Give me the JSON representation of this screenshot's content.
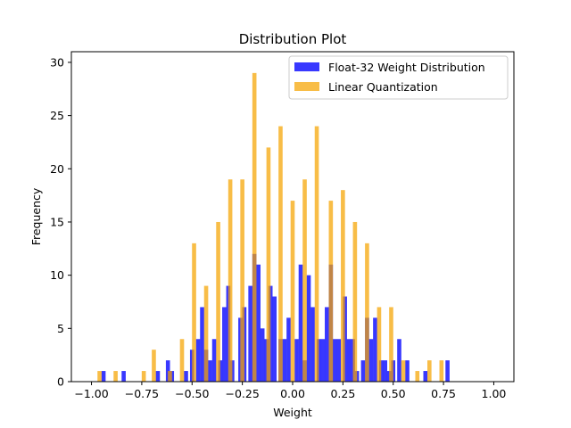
{
  "chart_data": {
    "type": "bar",
    "title": "Distribution Plot",
    "xlabel": "Weight",
    "ylabel": "Frequency",
    "xlim": [
      -1.1,
      1.1
    ],
    "ylim": [
      0,
      31
    ],
    "xticks": [
      -1.0,
      -0.75,
      -0.5,
      -0.25,
      0.0,
      0.25,
      0.5,
      0.75,
      1.0
    ],
    "xtick_labels": [
      "−1.00",
      "−0.75",
      "−0.50",
      "−0.25",
      "0.00",
      "0.25",
      "0.50",
      "0.75",
      "1.00"
    ],
    "yticks": [
      0,
      5,
      10,
      15,
      20,
      25,
      30
    ],
    "ytick_labels": [
      "0",
      "5",
      "10",
      "15",
      "20",
      "25",
      "30"
    ],
    "grid": false,
    "legend_position": "top-right",
    "series": [
      {
        "name": "Float-32 Weight Distribution",
        "color": "#0000ff",
        "opacity": 0.78,
        "bins": [
          [
            -0.94,
            1
          ],
          [
            -0.84,
            1
          ],
          [
            -0.67,
            1
          ],
          [
            -0.62,
            2
          ],
          [
            -0.6,
            1
          ],
          [
            -0.53,
            1
          ],
          [
            -0.5,
            3
          ],
          [
            -0.47,
            4
          ],
          [
            -0.45,
            7
          ],
          [
            -0.43,
            3
          ],
          [
            -0.41,
            2
          ],
          [
            -0.39,
            4
          ],
          [
            -0.36,
            2
          ],
          [
            -0.34,
            7
          ],
          [
            -0.32,
            9
          ],
          [
            -0.3,
            2
          ],
          [
            -0.26,
            6
          ],
          [
            -0.24,
            7
          ],
          [
            -0.21,
            9
          ],
          [
            -0.19,
            12
          ],
          [
            -0.17,
            11
          ],
          [
            -0.15,
            5
          ],
          [
            -0.13,
            4
          ],
          [
            -0.11,
            9
          ],
          [
            -0.09,
            8
          ],
          [
            -0.06,
            4
          ],
          [
            -0.04,
            4
          ],
          [
            -0.02,
            6
          ],
          [
            0.02,
            4
          ],
          [
            0.04,
            11
          ],
          [
            0.06,
            2
          ],
          [
            0.08,
            10
          ],
          [
            0.1,
            7
          ],
          [
            0.13,
            4
          ],
          [
            0.15,
            4
          ],
          [
            0.17,
            7
          ],
          [
            0.19,
            11
          ],
          [
            0.21,
            4
          ],
          [
            0.23,
            4
          ],
          [
            0.26,
            8
          ],
          [
            0.28,
            4
          ],
          [
            0.3,
            4
          ],
          [
            0.32,
            1
          ],
          [
            0.35,
            2
          ],
          [
            0.37,
            6
          ],
          [
            0.39,
            4
          ],
          [
            0.41,
            6
          ],
          [
            0.44,
            2
          ],
          [
            0.46,
            2
          ],
          [
            0.48,
            1
          ],
          [
            0.5,
            2
          ],
          [
            0.53,
            4
          ],
          [
            0.57,
            2
          ],
          [
            0.66,
            1
          ],
          [
            0.77,
            2
          ]
        ]
      },
      {
        "name": "Linear Quantization",
        "color": "#f5a300",
        "opacity": 0.72,
        "bins": [
          [
            -0.96,
            1
          ],
          [
            -0.88,
            1
          ],
          [
            -0.74,
            1
          ],
          [
            -0.69,
            3
          ],
          [
            -0.61,
            1
          ],
          [
            -0.55,
            4
          ],
          [
            -0.49,
            13
          ],
          [
            -0.43,
            9
          ],
          [
            -0.37,
            15
          ],
          [
            -0.31,
            19
          ],
          [
            -0.25,
            19
          ],
          [
            -0.19,
            29
          ],
          [
            -0.12,
            22
          ],
          [
            -0.06,
            24
          ],
          [
            0.0,
            17
          ],
          [
            0.06,
            19
          ],
          [
            0.12,
            24
          ],
          [
            0.19,
            17
          ],
          [
            0.25,
            18
          ],
          [
            0.31,
            15
          ],
          [
            0.37,
            13
          ],
          [
            0.43,
            7
          ],
          [
            0.49,
            7
          ],
          [
            0.55,
            2
          ],
          [
            0.62,
            1
          ],
          [
            0.68,
            2
          ],
          [
            0.74,
            2
          ]
        ]
      }
    ]
  }
}
